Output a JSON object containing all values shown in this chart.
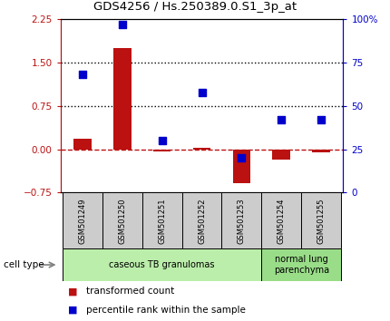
{
  "title": "GDS4256 / Hs.250389.0.S1_3p_at",
  "samples": [
    "GSM501249",
    "GSM501250",
    "GSM501251",
    "GSM501252",
    "GSM501253",
    "GSM501254",
    "GSM501255"
  ],
  "transformed_count": [
    0.18,
    1.75,
    -0.03,
    0.03,
    -0.58,
    -0.18,
    -0.06
  ],
  "percentile_rank": [
    68,
    97,
    30,
    58,
    20,
    42,
    42
  ],
  "bar_color": "#bb1111",
  "dot_color": "#0000cc",
  "left_ylim": [
    -0.75,
    2.25
  ],
  "right_ylim": [
    0,
    100
  ],
  "left_yticks": [
    -0.75,
    0,
    0.75,
    1.5,
    2.25
  ],
  "right_yticks": [
    0,
    25,
    50,
    75,
    100
  ],
  "right_yticklabels": [
    "0",
    "25",
    "50",
    "75",
    "100%"
  ],
  "hline_y": [
    0.75,
    1.5
  ],
  "zero_line_y": 0,
  "cell_type_groups": [
    {
      "label": "caseous TB granulomas",
      "start": 0,
      "end": 5,
      "color": "#bbeeaa"
    },
    {
      "label": "normal lung\nparenchyma",
      "start": 5,
      "end": 7,
      "color": "#99dd88"
    }
  ],
  "cell_type_label": "cell type",
  "legend_items": [
    {
      "color": "#bb1111",
      "label": "transformed count"
    },
    {
      "color": "#0000cc",
      "label": "percentile rank within the sample"
    }
  ],
  "bg_color": "#ffffff",
  "plot_bg": "#ffffff",
  "bar_width": 0.45,
  "dot_size": 40,
  "dotted_line_style": ":",
  "zero_line_style": "--",
  "sample_box_color": "#cccccc"
}
